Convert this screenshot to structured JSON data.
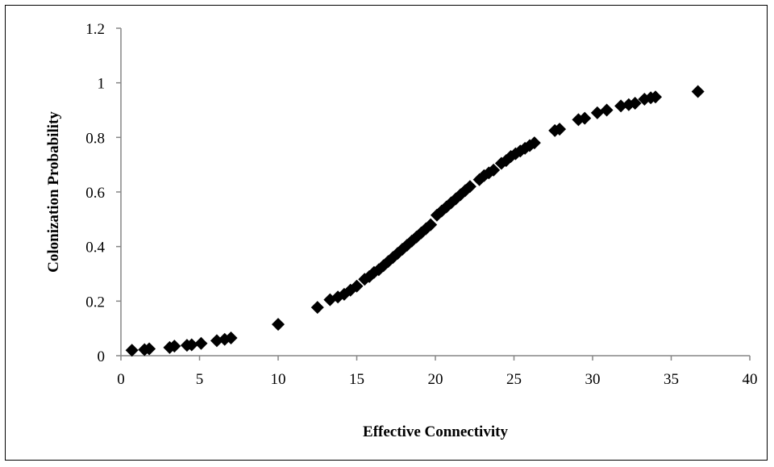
{
  "chart_data": {
    "type": "scatter",
    "title": "",
    "xlabel": "Effective Connectivity",
    "ylabel": "Colonization Probability",
    "xlim": [
      0,
      40
    ],
    "ylim": [
      0,
      1.2
    ],
    "x_ticks": [
      "0",
      "5",
      "10",
      "15",
      "20",
      "25",
      "30",
      "35",
      "40"
    ],
    "y_ticks": [
      "0",
      "0.2",
      "0.4",
      "0.6",
      "0.8",
      "1",
      "1.2"
    ],
    "grid": false,
    "legend": "none",
    "marker": "diamond",
    "marker_color": "#000000",
    "series": [
      {
        "points": [
          [
            0.7,
            0.02
          ],
          [
            1.5,
            0.022
          ],
          [
            1.8,
            0.025
          ],
          [
            3.1,
            0.03
          ],
          [
            3.4,
            0.035
          ],
          [
            4.2,
            0.038
          ],
          [
            4.5,
            0.04
          ],
          [
            5.1,
            0.045
          ],
          [
            6.1,
            0.055
          ],
          [
            6.6,
            0.06
          ],
          [
            7.0,
            0.065
          ],
          [
            10.0,
            0.115
          ],
          [
            12.5,
            0.177
          ],
          [
            13.3,
            0.205
          ],
          [
            13.8,
            0.215
          ],
          [
            14.2,
            0.225
          ],
          [
            14.6,
            0.24
          ],
          [
            15.0,
            0.255
          ],
          [
            15.5,
            0.28
          ],
          [
            15.8,
            0.29
          ],
          [
            16.1,
            0.305
          ],
          [
            16.4,
            0.315
          ],
          [
            16.7,
            0.33
          ],
          [
            17.0,
            0.345
          ],
          [
            17.3,
            0.36
          ],
          [
            17.6,
            0.375
          ],
          [
            17.9,
            0.39
          ],
          [
            18.2,
            0.405
          ],
          [
            18.5,
            0.42
          ],
          [
            18.8,
            0.435
          ],
          [
            19.1,
            0.45
          ],
          [
            19.4,
            0.465
          ],
          [
            19.7,
            0.48
          ],
          [
            20.1,
            0.515
          ],
          [
            20.4,
            0.53
          ],
          [
            20.7,
            0.545
          ],
          [
            21.0,
            0.56
          ],
          [
            21.3,
            0.575
          ],
          [
            21.6,
            0.59
          ],
          [
            21.9,
            0.605
          ],
          [
            22.2,
            0.62
          ],
          [
            22.8,
            0.645
          ],
          [
            23.1,
            0.66
          ],
          [
            23.4,
            0.67
          ],
          [
            23.7,
            0.68
          ],
          [
            24.2,
            0.705
          ],
          [
            24.5,
            0.715
          ],
          [
            24.8,
            0.73
          ],
          [
            25.1,
            0.74
          ],
          [
            25.4,
            0.75
          ],
          [
            25.7,
            0.76
          ],
          [
            26.0,
            0.77
          ],
          [
            26.3,
            0.78
          ],
          [
            27.6,
            0.825
          ],
          [
            27.9,
            0.83
          ],
          [
            29.1,
            0.865
          ],
          [
            29.5,
            0.87
          ],
          [
            30.3,
            0.89
          ],
          [
            30.9,
            0.9
          ],
          [
            31.8,
            0.915
          ],
          [
            32.3,
            0.92
          ],
          [
            32.7,
            0.925
          ],
          [
            33.3,
            0.94
          ],
          [
            33.7,
            0.945
          ],
          [
            34.0,
            0.948
          ],
          [
            36.7,
            0.968
          ]
        ]
      }
    ]
  }
}
